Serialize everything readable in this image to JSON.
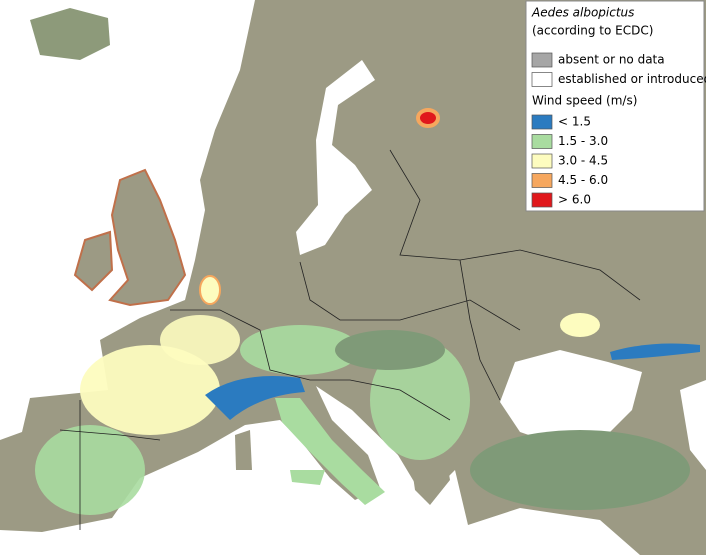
{
  "legend": {
    "title": "Aedes albopictus",
    "subtitle": "(according to ECDC)",
    "presence": [
      {
        "label": "absent or no data",
        "color": "#a6a6a6"
      },
      {
        "label": "established or introduced",
        "color": "#ffffff"
      }
    ],
    "wind_title": "Wind speed (m/s)",
    "wind": [
      {
        "label": "< 1.5",
        "color": "#2b7bc0"
      },
      {
        "label": "1.5 - 3.0",
        "color": "#a9dca0"
      },
      {
        "label": "3.0 - 4.5",
        "color": "#fdfcbf"
      },
      {
        "label": "4.5 - 6.0",
        "color": "#f6a75e"
      },
      {
        "label": "> 6.0",
        "color": "#e0181c"
      }
    ]
  }
}
